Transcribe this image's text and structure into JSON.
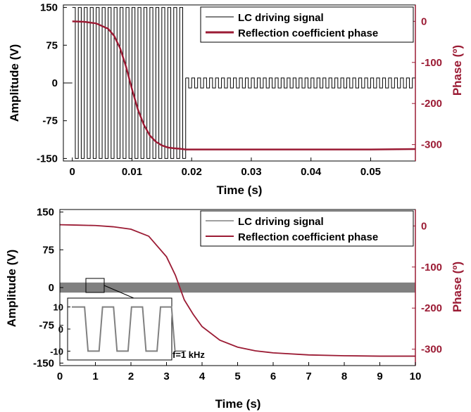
{
  "colors": {
    "signal": "#000000",
    "phase": "#9b1b34",
    "band": "#808080",
    "axis": "#000000"
  },
  "chart_data": [
    {
      "type": "line",
      "xlabel": "Time (s)",
      "ylabel": "Amplitude (V)",
      "y2label": "Phase (º)",
      "xlim": [
        -0.0015,
        0.0575
      ],
      "ylim": [
        -155,
        155
      ],
      "y2lim": [
        -340,
        40
      ],
      "x_ticks": [
        0,
        0.01,
        0.02,
        0.03,
        0.04,
        0.05
      ],
      "x_tick_labels": [
        "0",
        "0.01",
        "0.02",
        "0.03",
        "0.04",
        "0.05"
      ],
      "y_ticks": [
        150,
        75,
        0,
        -75,
        -150
      ],
      "y_tick_labels": [
        "150",
        "75",
        "0",
        "-75",
        "-150"
      ],
      "y2_ticks": [
        0,
        -100,
        -200,
        -300
      ],
      "y2_tick_labels": [
        "0",
        "-100",
        "-200",
        "-300"
      ],
      "legend_position": "top-right",
      "series": [
        {
          "name": "LC driving signal",
          "axis": "left",
          "kind": "square-wave",
          "segments": [
            {
              "x_start": 0,
              "x_end": 0.019,
              "period": 0.001,
              "high": 150,
              "low": -150
            },
            {
              "x_start": 0.019,
              "x_end": 0.0575,
              "period": 0.001,
              "high": 10,
              "low": -10
            }
          ]
        },
        {
          "name": "Reflection coefficient phase",
          "axis": "right",
          "x": [
            0,
            0.002,
            0.004,
            0.006,
            0.007,
            0.008,
            0.009,
            0.01,
            0.011,
            0.012,
            0.013,
            0.014,
            0.015,
            0.016,
            0.017,
            0.018,
            0.019,
            0.02,
            0.03,
            0.04,
            0.05,
            0.0575
          ],
          "values": [
            0,
            -1,
            -5,
            -18,
            -35,
            -65,
            -110,
            -165,
            -215,
            -252,
            -278,
            -293,
            -302,
            -307,
            -309,
            -310,
            -312,
            -312,
            -312,
            -312,
            -312,
            -311
          ]
        }
      ]
    },
    {
      "type": "line",
      "xlabel": "Time (s)",
      "ylabel": "Amplitude (V)",
      "y2label": "Phase (º)",
      "xlim": [
        0,
        10
      ],
      "ylim": [
        -155,
        155
      ],
      "y2lim": [
        -340,
        40
      ],
      "x_ticks": [
        0,
        1,
        2,
        3,
        4,
        5,
        6,
        7,
        8,
        9,
        10
      ],
      "x_tick_labels": [
        "0",
        "1",
        "2",
        "3",
        "4",
        "5",
        "6",
        "7",
        "8",
        "9",
        "10"
      ],
      "y_ticks": [
        150,
        75,
        0,
        -75,
        -150
      ],
      "y_tick_labels": [
        "150",
        "75",
        "0",
        "-75",
        "-150"
      ],
      "y2_ticks": [
        0,
        -100,
        -200,
        -300
      ],
      "y2_tick_labels": [
        "0",
        "-100",
        "-200",
        "-300"
      ],
      "legend_position": "top-right",
      "series": [
        {
          "name": "LC driving signal",
          "axis": "left",
          "kind": "band",
          "low": -10,
          "high": 10
        },
        {
          "name": "Reflection coefficient phase",
          "axis": "right",
          "x": [
            0,
            0.5,
            1,
            1.5,
            2,
            2.5,
            3,
            3.25,
            3.5,
            3.75,
            4,
            4.5,
            5,
            5.5,
            6,
            7,
            8,
            9,
            10
          ],
          "values": [
            3,
            2,
            1,
            -2,
            -8,
            -25,
            -75,
            -120,
            -180,
            -215,
            -245,
            -278,
            -295,
            -304,
            -309,
            -314,
            -316,
            -317,
            -317
          ]
        }
      ],
      "inset": {
        "kind": "square-wave",
        "period": 0.001,
        "high": 10,
        "low": -10,
        "y_tick_labels": [
          "10",
          "0",
          "-10"
        ],
        "annotation": "f=1 kHz"
      }
    }
  ]
}
